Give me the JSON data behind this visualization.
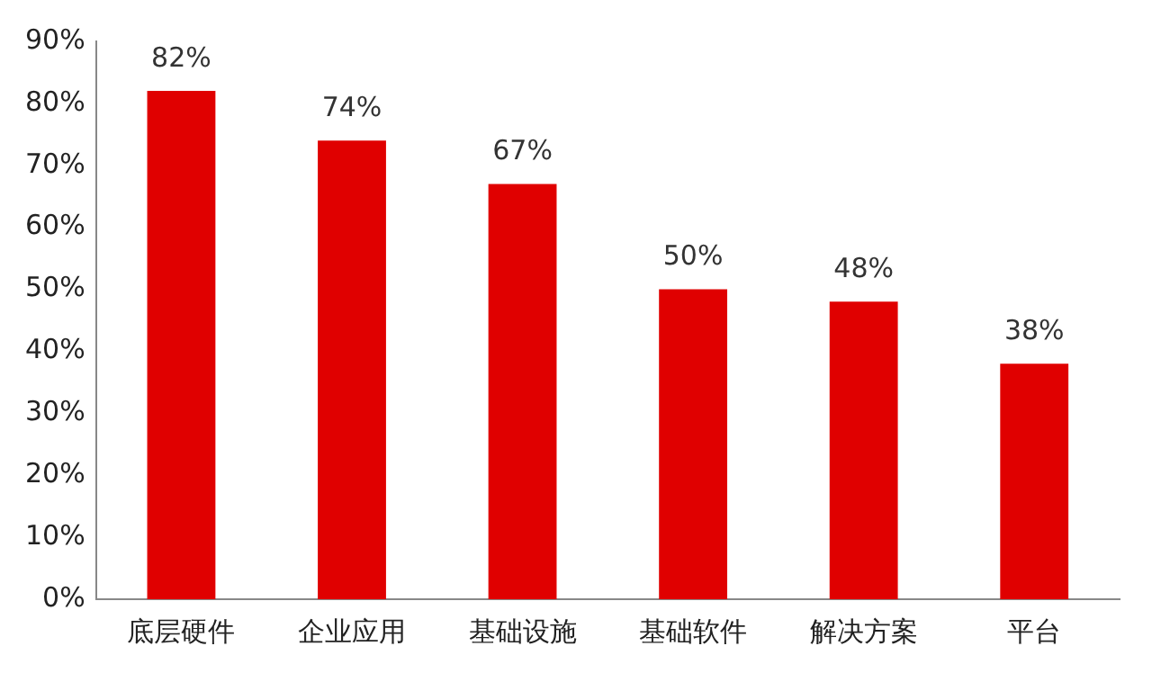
{
  "chart_data": {
    "type": "bar",
    "categories": [
      "底层硬件",
      "企业应用",
      "基础设施",
      "基础软件",
      "解决方案",
      "平台"
    ],
    "values": [
      82,
      74,
      67,
      50,
      48,
      38
    ],
    "value_labels": [
      "82%",
      "74%",
      "67%",
      "50%",
      "48%",
      "38%"
    ],
    "color": "#e00000",
    "ylim": [
      0,
      90
    ],
    "yticks": [
      {
        "value": 0,
        "label": "0%"
      },
      {
        "value": 10,
        "label": "10%"
      },
      {
        "value": 20,
        "label": "20%"
      },
      {
        "value": 30,
        "label": "30%"
      },
      {
        "value": 40,
        "label": "40%"
      },
      {
        "value": 50,
        "label": "50%"
      },
      {
        "value": 60,
        "label": "60%"
      },
      {
        "value": 70,
        "label": "70%"
      },
      {
        "value": 80,
        "label": "80%"
      },
      {
        "value": 90,
        "label": "90%"
      }
    ],
    "grid": false,
    "legend": false
  }
}
